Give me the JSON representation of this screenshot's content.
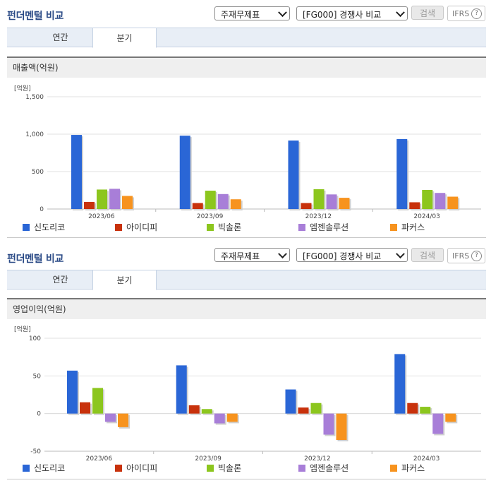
{
  "colors": {
    "title": "#2a4a86",
    "sindoricoh": "#2a66d6",
    "aidipi": "#c8320c",
    "bixolon": "#8cc61e",
    "mjsolution": "#a87ed8",
    "focus": "#f7931e"
  },
  "legend": [
    "신도리코",
    "아이디피",
    "빅솔론",
    "엠젠솔루션",
    "파커스"
  ],
  "panels": [
    {
      "title": "펀더멘털 비교",
      "select1": "주재무제표",
      "select2": "[FG000] 경쟁사 비교",
      "search_label": "검색",
      "ifrs_label": "IFRS",
      "help_icon": "?",
      "tabs": [
        "연간",
        "분기"
      ],
      "active_tab": 1,
      "subtitle": "매출액(억원)",
      "unit": "[억원]",
      "chart_data": {
        "type": "bar",
        "categories": [
          "2023/06",
          "2023/09",
          "2023/12",
          "2024/03"
        ],
        "ylim": [
          0,
          1500
        ],
        "yticks": [
          0,
          500,
          1000,
          1500
        ],
        "ytick_labels": [
          "0",
          "500",
          "1,000",
          "1,500"
        ],
        "grid": true,
        "series": [
          {
            "name": "신도리코",
            "values": [
              990,
              980,
              915,
              935
            ]
          },
          {
            "name": "아이디피",
            "values": [
              95,
              80,
              80,
              90
            ]
          },
          {
            "name": "빅솔론",
            "values": [
              260,
              245,
              265,
              255
            ]
          },
          {
            "name": "엠젠솔루션",
            "values": [
              270,
              200,
              195,
              215
            ]
          },
          {
            "name": "파커스",
            "values": [
              175,
              130,
              150,
              165
            ]
          }
        ]
      }
    },
    {
      "title": "펀더멘털 비교",
      "select1": "주재무제표",
      "select2": "[FG000] 경쟁사 비교",
      "search_label": "검색",
      "ifrs_label": "IFRS",
      "help_icon": "?",
      "tabs": [
        "연간",
        "분기"
      ],
      "active_tab": 1,
      "subtitle": "영업이익(억원)",
      "unit": "[억원]",
      "chart_data": {
        "type": "bar",
        "categories": [
          "2023/06",
          "2023/09",
          "2023/12",
          "2024/03"
        ],
        "ylim": [
          -50,
          100
        ],
        "yticks": [
          -50,
          0,
          50,
          100
        ],
        "ytick_labels": [
          "-50",
          "0",
          "50",
          "100"
        ],
        "grid": true,
        "series": [
          {
            "name": "신도리코",
            "values": [
              57,
              64,
              32,
              79
            ]
          },
          {
            "name": "아이디피",
            "values": [
              15,
              11,
              8,
              14
            ]
          },
          {
            "name": "빅솔론",
            "values": [
              34,
              6,
              14,
              9
            ]
          },
          {
            "name": "엠젠솔루션",
            "values": [
              -11,
              -13,
              -28,
              -27
            ]
          },
          {
            "name": "파커스",
            "values": [
              -18,
              -11,
              -35,
              -11
            ]
          }
        ]
      }
    }
  ]
}
